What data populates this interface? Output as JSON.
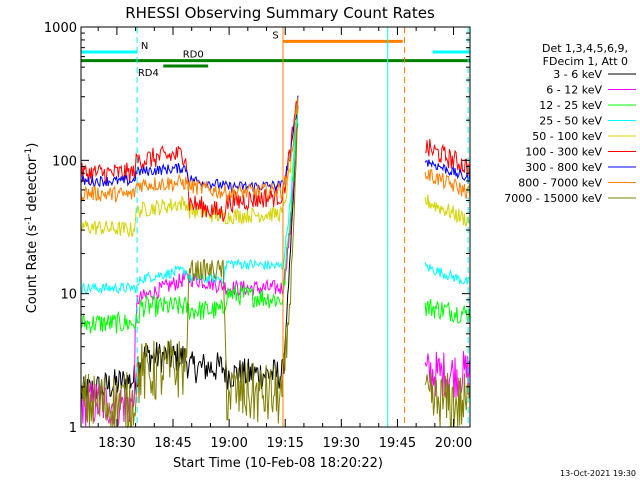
{
  "chart_data": {
    "type": "line",
    "title": "RHESSI Observing Summary Count Rates",
    "xlabel": "Start Time (10-Feb-08 18:20:22)",
    "ylabel_main": "Count Rate (s",
    "ylabel_sup1": "-1",
    "ylabel_mid": " detector",
    "ylabel_sup2": "-1",
    "ylabel_end": ")",
    "yscale": "log",
    "ylim": [
      1,
      1000
    ],
    "xlim_minutes": [
      0,
      100
    ],
    "x_ticks": [
      {
        "label": "18:30",
        "t": 9.6
      },
      {
        "label": "18:45",
        "t": 24.6
      },
      {
        "label": "19:00",
        "t": 39.6
      },
      {
        "label": "19:15",
        "t": 54.6
      },
      {
        "label": "19:30",
        "t": 69.6
      },
      {
        "label": "19:45",
        "t": 84.6
      },
      {
        "label": "20:00",
        "t": 99.6
      }
    ],
    "y_ticks": [
      {
        "label": "1",
        "v": 1
      },
      {
        "label": "10",
        "v": 10
      },
      {
        "label": "100",
        "v": 100
      },
      {
        "label": "1000",
        "v": 1000
      }
    ],
    "legend_header": [
      "Det 1,3,4,5,6,9,",
      "FDecim 1, Att 0"
    ],
    "legend_position": "right",
    "series": [
      {
        "name": "3 - 6 keV",
        "color": "#000000",
        "points": [
          [
            0,
            1.8
          ],
          [
            15,
            2.3
          ],
          [
            16,
            3.4
          ],
          [
            28,
            3.3
          ],
          [
            29,
            2.8
          ],
          [
            38,
            2.8
          ],
          [
            39,
            2.5
          ],
          [
            54,
            2.5
          ],
          [
            56,
            20
          ],
          [
            58,
            250
          ]
        ]
      },
      {
        "name": "6 - 12 keV",
        "color": "#ff00ff",
        "points": [
          [
            0,
            1.5
          ],
          [
            14,
            1.5
          ],
          [
            15,
            9
          ],
          [
            28,
            13
          ],
          [
            29,
            13
          ],
          [
            35,
            12
          ],
          [
            40,
            11
          ],
          [
            54,
            11
          ],
          [
            56,
            30
          ],
          [
            58,
            260
          ],
          [
            92,
            2.5
          ],
          [
            104,
            2.5
          ]
        ]
      },
      {
        "name": "12 - 25 keV",
        "color": "#00ff00",
        "points": [
          [
            0,
            6
          ],
          [
            15,
            6
          ],
          [
            16,
            8
          ],
          [
            28,
            8
          ],
          [
            29,
            7.5
          ],
          [
            38,
            7.5
          ],
          [
            39,
            10
          ],
          [
            54,
            9
          ],
          [
            56,
            40
          ],
          [
            58,
            270
          ],
          [
            92,
            8
          ],
          [
            104,
            7
          ]
        ]
      },
      {
        "name": "25 - 50 keV",
        "color": "#00ffff",
        "points": [
          [
            0,
            11
          ],
          [
            15,
            11
          ],
          [
            16,
            13
          ],
          [
            28,
            15
          ],
          [
            29,
            13
          ],
          [
            38,
            13
          ],
          [
            39,
            17
          ],
          [
            54,
            16
          ],
          [
            56,
            50
          ],
          [
            58,
            280
          ],
          [
            92,
            16
          ],
          [
            104,
            12
          ]
        ]
      },
      {
        "name": "50 - 100 keV",
        "color": "#d4d400",
        "points": [
          [
            0,
            32
          ],
          [
            14,
            30
          ],
          [
            15,
            42
          ],
          [
            28,
            48
          ],
          [
            29,
            42
          ],
          [
            38,
            38
          ],
          [
            39,
            38
          ],
          [
            54,
            40
          ],
          [
            56,
            90
          ],
          [
            58,
            285
          ],
          [
            92,
            50
          ],
          [
            104,
            35
          ]
        ]
      },
      {
        "name": "100 - 300 keV",
        "color": "#ff0000",
        "points": [
          [
            0,
            80
          ],
          [
            14,
            80
          ],
          [
            15,
            100
          ],
          [
            28,
            112
          ],
          [
            29,
            48
          ],
          [
            38,
            40
          ],
          [
            39,
            48
          ],
          [
            54,
            55
          ],
          [
            56,
            120
          ],
          [
            58,
            290
          ],
          [
            92,
            125
          ],
          [
            104,
            88
          ]
        ]
      },
      {
        "name": "300 - 800 keV",
        "color": "#0000ff",
        "points": [
          [
            0,
            70
          ],
          [
            14,
            70
          ],
          [
            15,
            82
          ],
          [
            28,
            88
          ],
          [
            29,
            72
          ],
          [
            38,
            65
          ],
          [
            39,
            63
          ],
          [
            54,
            65
          ],
          [
            56,
            110
          ],
          [
            58,
            285
          ],
          [
            92,
            100
          ],
          [
            104,
            72
          ]
        ]
      },
      {
        "name": "800 - 7000 keV",
        "color": "#ff7f00",
        "points": [
          [
            0,
            57
          ],
          [
            14,
            55
          ],
          [
            15,
            66
          ],
          [
            28,
            68
          ],
          [
            29,
            64
          ],
          [
            38,
            58
          ],
          [
            39,
            57
          ],
          [
            54,
            60
          ],
          [
            56,
            100
          ],
          [
            58,
            280
          ],
          [
            92,
            80
          ],
          [
            104,
            57
          ]
        ]
      },
      {
        "name": "7000 - 15000 keV",
        "color": "#808000",
        "points": [
          [
            0,
            1.5
          ],
          [
            14,
            1.5
          ],
          [
            15,
            2.5
          ],
          [
            28,
            2.8
          ],
          [
            29,
            15
          ],
          [
            38,
            15
          ],
          [
            39,
            1.8
          ],
          [
            54,
            1.7
          ],
          [
            56,
            10
          ],
          [
            58,
            200
          ],
          [
            92,
            1.5
          ],
          [
            104,
            1.5
          ]
        ]
      }
    ],
    "flag_bars": [
      {
        "name": "N",
        "color": "#00ffff",
        "y": 650,
        "segments": [
          [
            0,
            15
          ],
          [
            94,
            104
          ]
        ],
        "label_t": 17
      },
      {
        "name": "S",
        "color": "#ff7f00",
        "y": 780,
        "segments": [
          [
            54,
            86
          ]
        ],
        "label_t": 52
      },
      {
        "name": "RD0",
        "color": "#008000",
        "y": 560,
        "segments": [
          [
            0,
            104
          ]
        ],
        "label_t": 30
      },
      {
        "name": "RD4",
        "color": "#008000",
        "y": 510,
        "segments": [
          [
            22,
            34
          ]
        ],
        "label_t": 18
      }
    ],
    "vertical_lines": [
      {
        "t": 15,
        "color": "#00ffff",
        "style": "dashed"
      },
      {
        "t": 54,
        "color": "#ff7f00",
        "style": "solid"
      },
      {
        "t": 82,
        "color": "#00ffff",
        "style": "solid"
      },
      {
        "t": 86.5,
        "color": "#ff7f00",
        "style": "dashed"
      },
      {
        "t": 103.5,
        "color": "#00ffff",
        "style": "dashed"
      }
    ],
    "footer_date": "13-Oct-2021 19:30"
  }
}
